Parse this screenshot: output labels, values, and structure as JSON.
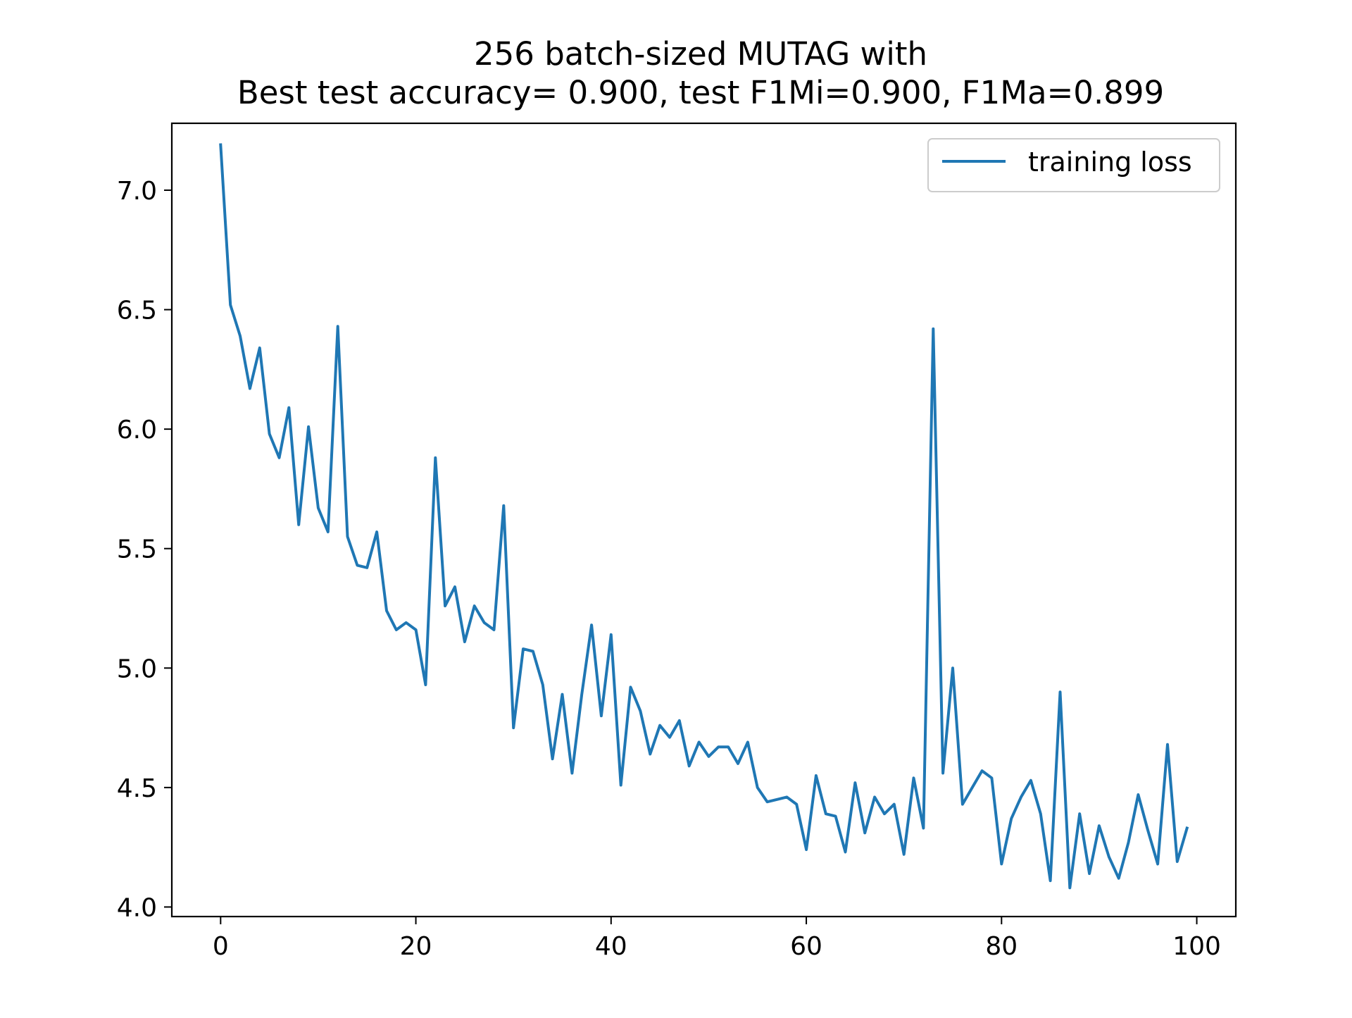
{
  "chart_data": {
    "type": "line",
    "title_line1": "256 batch-sized MUTAG with",
    "title_line2": "Best test accuracy= 0.900, test F1Mi=0.900, F1Ma=0.899",
    "xlabel": "",
    "ylabel": "",
    "xlim": [
      -5,
      104
    ],
    "ylim": [
      3.96,
      7.28
    ],
    "xticks": [
      0,
      20,
      40,
      60,
      80,
      100
    ],
    "xtick_labels": [
      "0",
      "20",
      "40",
      "60",
      "80",
      "100"
    ],
    "yticks": [
      4.0,
      4.5,
      5.0,
      5.5,
      6.0,
      6.5,
      7.0
    ],
    "ytick_labels": [
      "4.0",
      "4.5",
      "5.0",
      "5.5",
      "6.0",
      "6.5",
      "7.0"
    ],
    "grid": false,
    "legend_position": "top-right",
    "series": [
      {
        "name": "training loss",
        "color": "#1f77b4",
        "x": [
          0,
          1,
          2,
          3,
          4,
          5,
          6,
          7,
          8,
          9,
          10,
          11,
          12,
          13,
          14,
          15,
          16,
          17,
          18,
          19,
          20,
          21,
          22,
          23,
          24,
          25,
          26,
          27,
          28,
          29,
          30,
          31,
          32,
          33,
          34,
          35,
          36,
          37,
          38,
          39,
          40,
          41,
          42,
          43,
          44,
          45,
          46,
          47,
          48,
          49,
          50,
          51,
          52,
          53,
          54,
          55,
          56,
          57,
          58,
          59,
          60,
          61,
          62,
          63,
          64,
          65,
          66,
          67,
          68,
          69,
          70,
          71,
          72,
          73,
          74,
          75,
          76,
          77,
          78,
          79,
          80,
          81,
          82,
          83,
          84,
          85,
          86,
          87,
          88,
          89,
          90,
          91,
          92,
          93,
          94,
          95,
          96,
          97,
          98,
          99
        ],
        "values": [
          7.19,
          6.52,
          6.39,
          6.17,
          6.34,
          5.98,
          5.88,
          6.09,
          5.6,
          6.01,
          5.67,
          5.57,
          6.43,
          5.55,
          5.43,
          5.42,
          5.57,
          5.24,
          5.16,
          5.19,
          5.16,
          4.93,
          5.88,
          5.26,
          5.34,
          5.11,
          5.26,
          5.19,
          5.16,
          5.68,
          4.75,
          5.08,
          5.07,
          4.93,
          4.62,
          4.89,
          4.56,
          4.89,
          5.18,
          4.8,
          5.14,
          4.51,
          4.92,
          4.82,
          4.64,
          4.76,
          4.71,
          4.78,
          4.59,
          4.69,
          4.63,
          4.67,
          4.67,
          4.6,
          4.69,
          4.5,
          4.44,
          4.45,
          4.46,
          4.43,
          4.24,
          4.55,
          4.39,
          4.38,
          4.23,
          4.52,
          4.31,
          4.46,
          4.39,
          4.43,
          4.22,
          4.54,
          4.33,
          6.42,
          4.56,
          5.0,
          4.43,
          4.5,
          4.57,
          4.54,
          4.18,
          4.37,
          4.46,
          4.53,
          4.39,
          4.11,
          4.9,
          4.08,
          4.39,
          4.14,
          4.34,
          4.21,
          4.12,
          4.27,
          4.47,
          4.32,
          4.18,
          4.68,
          4.19,
          4.33
        ]
      }
    ]
  }
}
